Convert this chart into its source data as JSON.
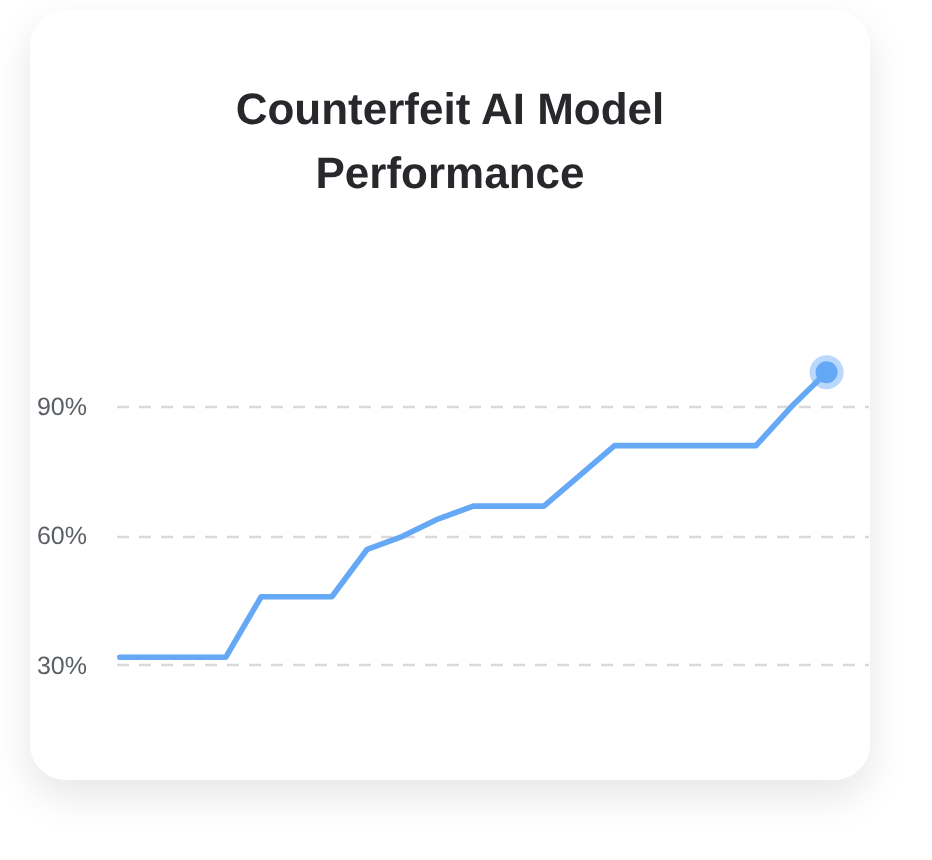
{
  "chart_data": {
    "type": "line",
    "title": "Counterfeit AI Model Performance",
    "categories": [
      null,
      null,
      null,
      null,
      null,
      null,
      null,
      null,
      null,
      null,
      null,
      null,
      null,
      null,
      null,
      null,
      null,
      null,
      null,
      null,
      null
    ],
    "series": [
      {
        "color": "#64a8f6",
        "values": [
          32,
          32,
          32,
          32,
          46,
          46,
          46,
          57,
          60,
          64,
          67,
          67,
          67,
          74,
          81,
          81,
          81,
          81,
          81,
          90,
          98
        ]
      },
      {
        "type": "scatter",
        "marker": "circle",
        "color": "#64a8f6",
        "values": [
          null,
          null,
          null,
          null,
          null,
          null,
          null,
          null,
          null,
          null,
          null,
          null,
          null,
          null,
          null,
          null,
          null,
          null,
          null,
          null,
          98
        ]
      }
    ],
    "ylim": [
      20,
      102
    ],
    "yticks": [
      {
        "value": 30,
        "label": "30%"
      },
      {
        "value": 60,
        "label": "60%"
      },
      {
        "value": 90,
        "label": "90%"
      }
    ],
    "grid": "y",
    "marker": "none",
    "line_style": "solid",
    "tick_labels": "y"
  }
}
